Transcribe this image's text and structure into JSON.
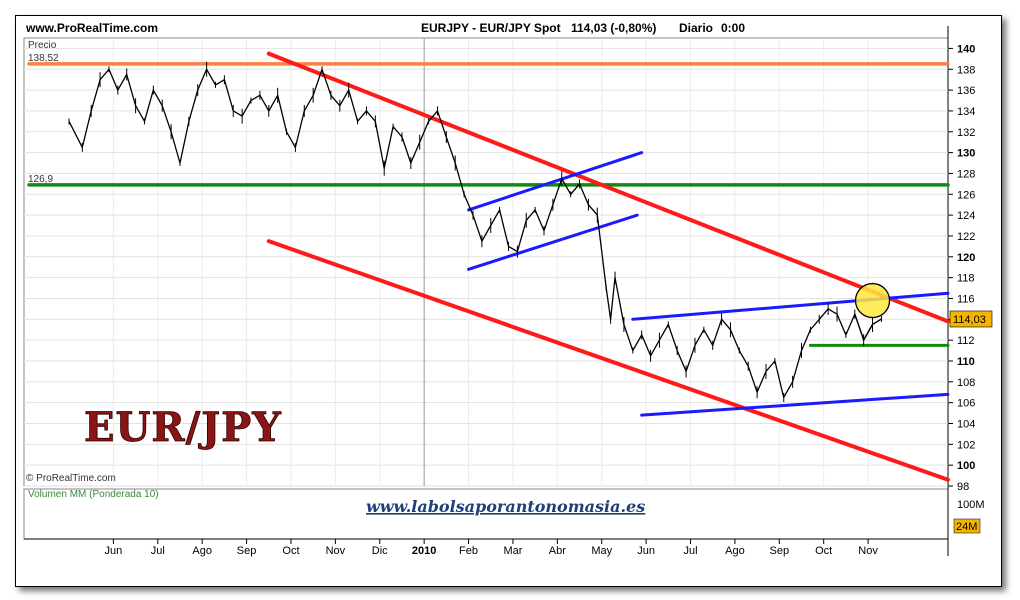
{
  "header": {
    "site": "www.ProRealTime.com",
    "title": "EURJPY - EUR/JPY Spot",
    "price": "114,03 (-0,80%)",
    "period": "Diario",
    "time": "0:00"
  },
  "panel": {
    "price_label": "Precio",
    "volume_label": "Volumen MM (Ponderada 10)",
    "copyright": "© ProRealTime.com",
    "brand_text": "EUR/JPY",
    "url_text": "www.labolsaporantonomasia.es"
  },
  "chart_data": {
    "type": "line",
    "title": "EURJPY - EUR/JPY Spot",
    "ylabel": "Precio",
    "ylim": [
      98,
      141
    ],
    "y_ticks": [
      98,
      100,
      102,
      104,
      106,
      108,
      110,
      112,
      114,
      116,
      118,
      120,
      122,
      124,
      126,
      128,
      130,
      132,
      134,
      136,
      138,
      140
    ],
    "x_ticks": [
      "Jun",
      "Jul",
      "Ago",
      "Sep",
      "Oct",
      "Nov",
      "Dic",
      "2010",
      "Feb",
      "Mar",
      "Abr",
      "May",
      "Jun",
      "Jul",
      "Ago",
      "Sep",
      "Oct",
      "Nov"
    ],
    "x_tick_pos": [
      1.0,
      2.0,
      3.0,
      4.0,
      5.0,
      6.0,
      7.0,
      8.0,
      9.0,
      10.0,
      11.0,
      12.0,
      13.0,
      14.0,
      15.0,
      16.0,
      17.0,
      18.0
    ],
    "xlim": [
      0.0,
      19.8
    ],
    "level_labels": [
      {
        "value": 138.52,
        "text": "138,52"
      },
      {
        "value": 126.9,
        "text": "126,9"
      }
    ],
    "last_price_label": "114,03",
    "last_price": 114.03,
    "price_series": [
      [
        0.0,
        133.0
      ],
      [
        0.3,
        130.5
      ],
      [
        0.5,
        134.0
      ],
      [
        0.7,
        137.0
      ],
      [
        0.9,
        138.0
      ],
      [
        1.1,
        136.0
      ],
      [
        1.3,
        137.5
      ],
      [
        1.5,
        134.5
      ],
      [
        1.7,
        133.0
      ],
      [
        1.9,
        136.0
      ],
      [
        2.1,
        134.5
      ],
      [
        2.3,
        132.0
      ],
      [
        2.5,
        129.0
      ],
      [
        2.7,
        133.0
      ],
      [
        2.9,
        136.0
      ],
      [
        3.1,
        138.0
      ],
      [
        3.3,
        136.5
      ],
      [
        3.5,
        137.0
      ],
      [
        3.7,
        134.0
      ],
      [
        3.9,
        133.5
      ],
      [
        4.1,
        135.0
      ],
      [
        4.3,
        135.5
      ],
      [
        4.5,
        134.0
      ],
      [
        4.7,
        135.5
      ],
      [
        4.9,
        132.0
      ],
      [
        5.1,
        130.5
      ],
      [
        5.3,
        134.0
      ],
      [
        5.5,
        135.5
      ],
      [
        5.7,
        138.0
      ],
      [
        5.9,
        135.5
      ],
      [
        6.1,
        134.5
      ],
      [
        6.3,
        136.0
      ],
      [
        6.5,
        133.0
      ],
      [
        6.7,
        134.0
      ],
      [
        6.9,
        133.0
      ],
      [
        7.1,
        128.5
      ],
      [
        7.3,
        132.5
      ],
      [
        7.5,
        131.5
      ],
      [
        7.7,
        129.0
      ],
      [
        7.9,
        131.0
      ],
      [
        8.1,
        133.0
      ],
      [
        8.3,
        134.0
      ],
      [
        8.5,
        131.5
      ],
      [
        8.7,
        129.0
      ],
      [
        8.9,
        126.0
      ],
      [
        9.1,
        124.0
      ],
      [
        9.3,
        121.5
      ],
      [
        9.5,
        123.0
      ],
      [
        9.7,
        124.5
      ],
      [
        9.9,
        121.0
      ],
      [
        10.1,
        120.5
      ],
      [
        10.3,
        123.5
      ],
      [
        10.5,
        124.5
      ],
      [
        10.7,
        122.5
      ],
      [
        10.9,
        125.0
      ],
      [
        11.1,
        127.5
      ],
      [
        11.3,
        126.0
      ],
      [
        11.5,
        127.0
      ],
      [
        11.7,
        125.0
      ],
      [
        11.9,
        124.0
      ],
      [
        12.1,
        117.0
      ],
      [
        12.2,
        114.0
      ],
      [
        12.3,
        118.0
      ],
      [
        12.5,
        113.5
      ],
      [
        12.7,
        111.0
      ],
      [
        12.9,
        112.5
      ],
      [
        13.1,
        110.5
      ],
      [
        13.3,
        112.0
      ],
      [
        13.5,
        113.5
      ],
      [
        13.7,
        111.0
      ],
      [
        13.9,
        109.0
      ],
      [
        14.1,
        111.5
      ],
      [
        14.3,
        113.0
      ],
      [
        14.5,
        111.5
      ],
      [
        14.7,
        114.0
      ],
      [
        14.9,
        113.0
      ],
      [
        15.1,
        111.0
      ],
      [
        15.3,
        109.5
      ],
      [
        15.5,
        107.0
      ],
      [
        15.7,
        109.0
      ],
      [
        15.9,
        110.0
      ],
      [
        16.1,
        106.5
      ],
      [
        16.3,
        108.0
      ],
      [
        16.5,
        111.0
      ],
      [
        16.7,
        113.0
      ],
      [
        16.9,
        114.0
      ],
      [
        17.1,
        115.0
      ],
      [
        17.3,
        114.5
      ],
      [
        17.5,
        112.5
      ],
      [
        17.7,
        114.5
      ],
      [
        17.9,
        112.0
      ],
      [
        18.1,
        113.5
      ],
      [
        18.3,
        114.03
      ]
    ],
    "trend_lines": [
      {
        "color": "#ff7f3f",
        "width": 3.5,
        "points": [
          [
            -0.9,
            138.52
          ],
          [
            19.8,
            138.52
          ]
        ]
      },
      {
        "color": "#108a10",
        "width": 3.5,
        "points": [
          [
            -0.9,
            126.9
          ],
          [
            19.8,
            126.9
          ]
        ]
      },
      {
        "color": "#ff1a1a",
        "width": 4,
        "points": [
          [
            4.5,
            139.5
          ],
          [
            19.8,
            113.8
          ]
        ]
      },
      {
        "color": "#ff1a1a",
        "width": 4,
        "points": [
          [
            4.5,
            121.5
          ],
          [
            19.8,
            98.6
          ]
        ]
      },
      {
        "color": "#1a1aff",
        "width": 3,
        "points": [
          [
            9.0,
            124.5
          ],
          [
            12.9,
            130.0
          ]
        ]
      },
      {
        "color": "#1a1aff",
        "width": 3,
        "points": [
          [
            9.0,
            118.8
          ],
          [
            12.8,
            124.0
          ]
        ]
      },
      {
        "color": "#1a1aff",
        "width": 3,
        "points": [
          [
            12.7,
            114.0
          ],
          [
            19.8,
            116.5
          ]
        ]
      },
      {
        "color": "#1a1aff",
        "width": 3,
        "points": [
          [
            12.9,
            104.8
          ],
          [
            19.8,
            106.8
          ]
        ]
      },
      {
        "color": "#108a10",
        "width": 3,
        "points": [
          [
            16.7,
            111.5
          ],
          [
            19.8,
            111.5
          ]
        ]
      }
    ],
    "highlight_circle": {
      "x": 18.1,
      "y": 115.8,
      "color": "#ffe640"
    },
    "volume_ticks": [
      {
        "text": "100M"
      },
      {
        "text": "24M"
      }
    ],
    "grid": true
  }
}
